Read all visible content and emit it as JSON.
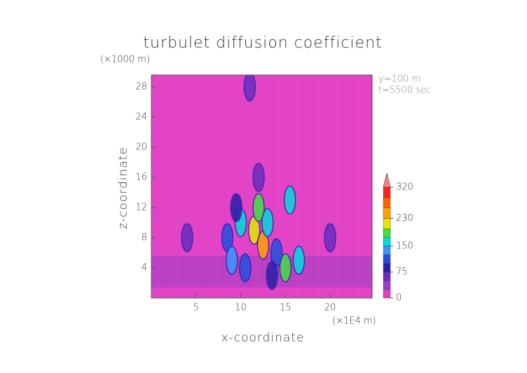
{
  "chart_data": {
    "type": "contour",
    "title": "turbulet diffusion coefficient",
    "x_label": "x-coordinate",
    "y_label": "z-coordinate",
    "x_unit": "(×1E4 m)",
    "y_unit": "(×1000 m)",
    "annotations": [
      "y=100 m",
      "t=5500 sec"
    ],
    "xlim": [
      0,
      24.7
    ],
    "ylim": [
      0,
      29.6
    ],
    "xticks": [
      5,
      10,
      15,
      20
    ],
    "yticks": [
      4,
      8,
      12,
      16,
      20,
      24,
      28
    ],
    "background_color": "#e23fc5",
    "features": {
      "x": [
        4,
        8.5,
        9,
        10,
        10.5,
        11.5,
        12,
        12.5,
        13,
        14,
        15,
        15.5,
        16.5,
        20,
        12,
        11,
        9.5,
        13.5
      ],
      "y": [
        8,
        8,
        5,
        10,
        4,
        9,
        12,
        7,
        10,
        6,
        4,
        13,
        5,
        8,
        16,
        28,
        12,
        3
      ],
      "values": [
        50,
        100,
        125,
        150,
        100,
        200,
        175,
        230,
        150,
        100,
        175,
        150,
        150,
        50,
        50,
        50,
        75,
        75
      ]
    },
    "colorbar": {
      "levels": [
        0,
        25,
        50,
        75,
        100,
        125,
        150,
        175,
        200,
        230,
        260,
        290,
        320
      ],
      "colors": [
        "#e23fc5",
        "#a03cc8",
        "#6a2cc0",
        "#2a1fa8",
        "#2450e0",
        "#3c96ff",
        "#00dcdc",
        "#40e040",
        "#e6e600",
        "#ffa000",
        "#ff6000",
        "#ff2020"
      ],
      "extend_color": "#ff8080",
      "ticks": [
        0,
        75,
        150,
        230,
        320
      ]
    }
  }
}
